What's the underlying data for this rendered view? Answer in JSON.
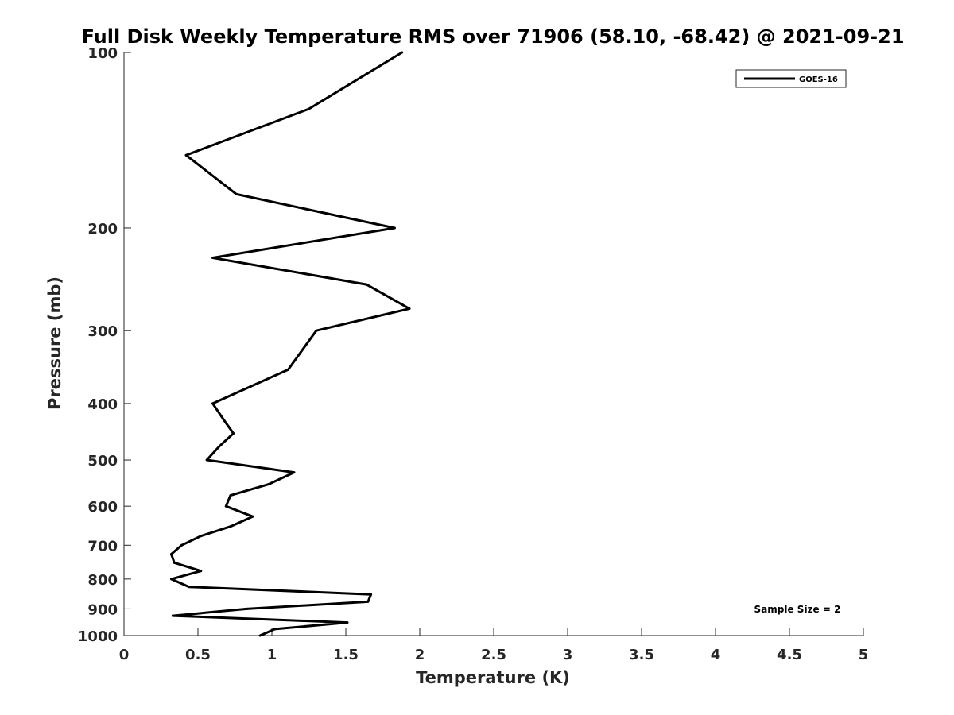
{
  "chart_data": {
    "type": "line",
    "title": "Full Disk Weekly Temperature RMS over 71906 (58.10, -68.42) @ 2021-09-21",
    "xlabel": "Temperature (K)",
    "ylabel": "Pressure (mb)",
    "xlim": [
      0,
      5
    ],
    "ylim": [
      100,
      1000
    ],
    "y_scale": "log",
    "y_reversed": true,
    "x_ticks": [
      "0",
      "0.5",
      "1",
      "1.5",
      "2",
      "2.5",
      "3",
      "3.5",
      "4",
      "4.5",
      "5"
    ],
    "y_ticks": [
      "100",
      "200",
      "300",
      "400",
      "500",
      "600",
      "700",
      "800",
      "900",
      "1000"
    ],
    "grid": false,
    "legend_position": "top-right",
    "annotation": "Sample Size = 2",
    "series": [
      {
        "name": "GOES-16",
        "color": "#000000",
        "points": [
          {
            "x": 1.88,
            "p": 100
          },
          {
            "x": 1.25,
            "p": 125
          },
          {
            "x": 0.42,
            "p": 150
          },
          {
            "x": 0.76,
            "p": 175
          },
          {
            "x": 1.83,
            "p": 200
          },
          {
            "x": 0.6,
            "p": 225
          },
          {
            "x": 1.64,
            "p": 250
          },
          {
            "x": 1.93,
            "p": 275
          },
          {
            "x": 1.3,
            "p": 300
          },
          {
            "x": 1.11,
            "p": 350
          },
          {
            "x": 0.6,
            "p": 400
          },
          {
            "x": 0.67,
            "p": 425
          },
          {
            "x": 0.74,
            "p": 450
          },
          {
            "x": 0.64,
            "p": 475
          },
          {
            "x": 0.56,
            "p": 500
          },
          {
            "x": 1.15,
            "p": 525
          },
          {
            "x": 0.98,
            "p": 550
          },
          {
            "x": 0.72,
            "p": 575
          },
          {
            "x": 0.69,
            "p": 600
          },
          {
            "x": 0.87,
            "p": 625
          },
          {
            "x": 0.72,
            "p": 650
          },
          {
            "x": 0.52,
            "p": 675
          },
          {
            "x": 0.39,
            "p": 700
          },
          {
            "x": 0.32,
            "p": 725
          },
          {
            "x": 0.34,
            "p": 750
          },
          {
            "x": 0.52,
            "p": 775
          },
          {
            "x": 0.32,
            "p": 800
          },
          {
            "x": 0.44,
            "p": 825
          },
          {
            "x": 1.67,
            "p": 850
          },
          {
            "x": 1.65,
            "p": 875
          },
          {
            "x": 0.83,
            "p": 900
          },
          {
            "x": 0.33,
            "p": 925
          },
          {
            "x": 1.51,
            "p": 950
          },
          {
            "x": 1.02,
            "p": 975
          },
          {
            "x": 0.92,
            "p": 1000
          }
        ]
      }
    ]
  }
}
